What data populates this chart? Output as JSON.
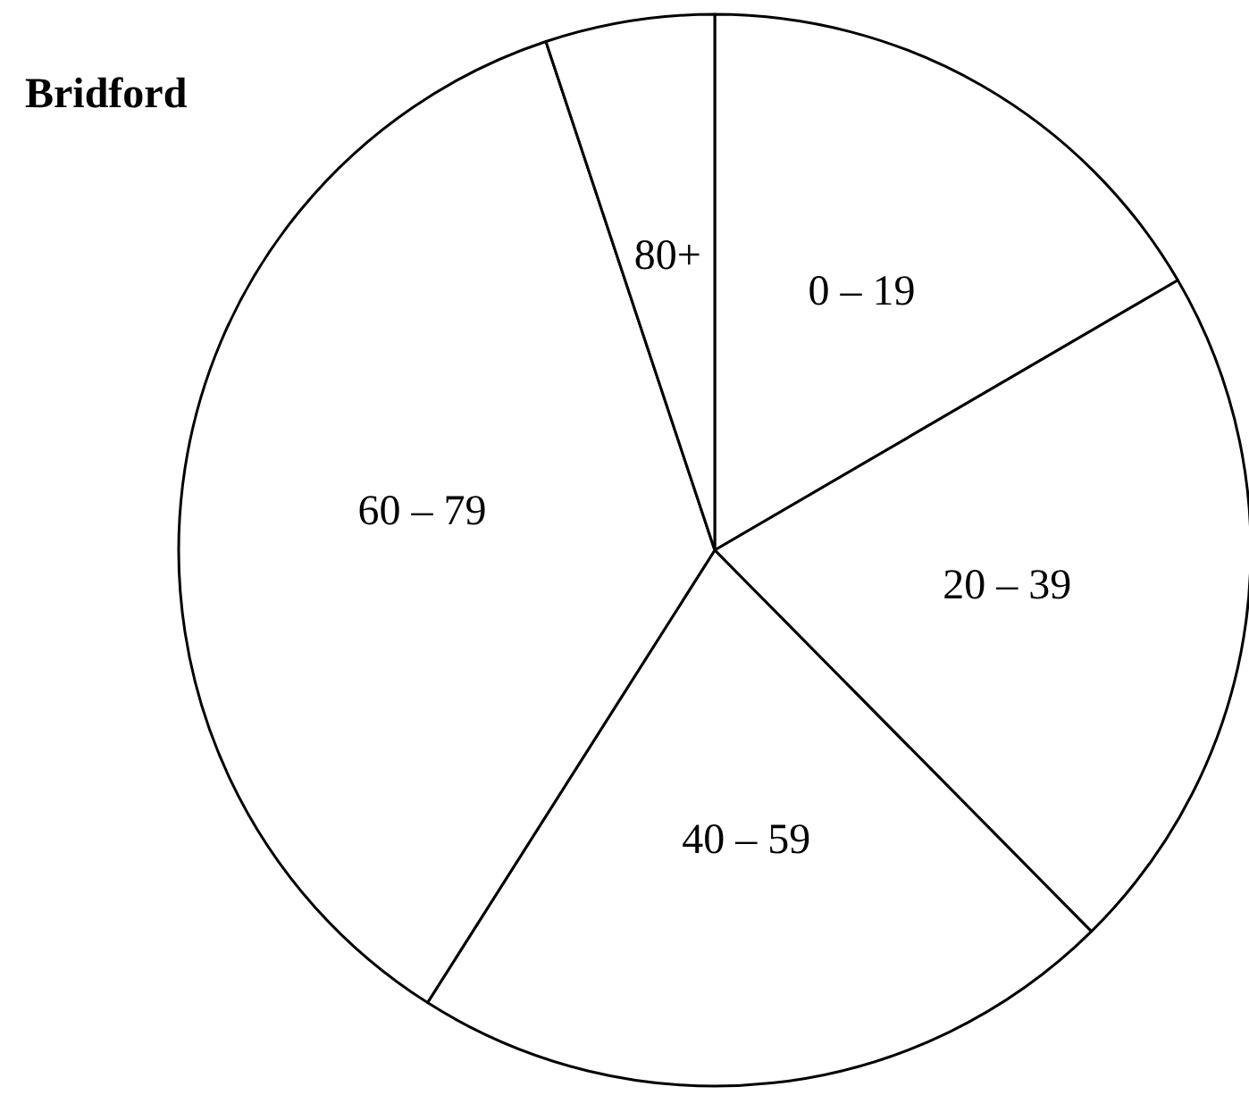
{
  "chart_data": {
    "type": "pie",
    "title": "Bridford",
    "categories": [
      "0 – 19",
      "20 – 39",
      "40 – 59",
      "60 – 79",
      "80+"
    ],
    "values": [
      16.6,
      21,
      21.4,
      35.9,
      5.1
    ],
    "colors": [
      "#ffffff",
      "#ffffff",
      "#ffffff",
      "#ffffff",
      "#ffffff"
    ]
  }
}
